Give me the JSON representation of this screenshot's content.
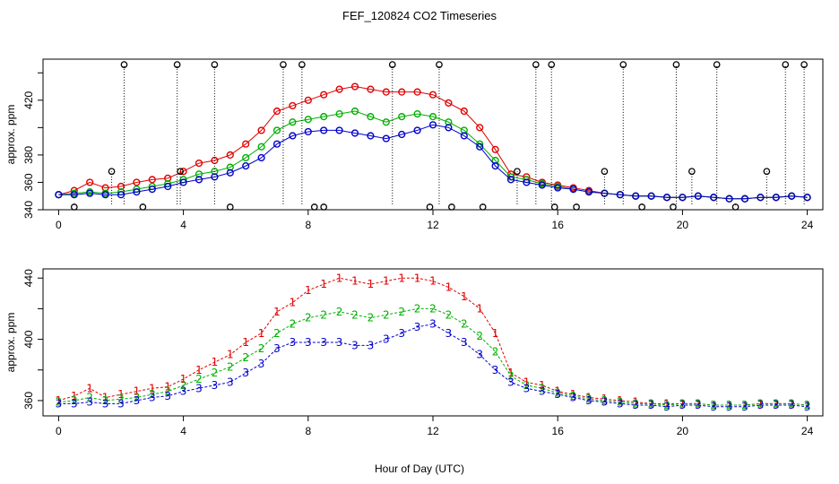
{
  "figure": {
    "title": "FEF_120824  CO2 Timeseries",
    "xlabel": "Hour of Day (UTC)"
  },
  "colors": {
    "series_1": "#e00000",
    "series_2": "#00b000",
    "series_3": "#0000cc",
    "raw": "#000000",
    "highlight": "#00d0d0"
  },
  "chart_data": [
    {
      "type": "scatter",
      "panel": "top",
      "title": "FEF_120824  CO2 Timeseries",
      "xlabel": "",
      "ylabel": "approx. ppm",
      "xlim": [
        -0.5,
        24.5
      ],
      "ylim": [
        340,
        450
      ],
      "xticks": [
        0,
        4,
        8,
        12,
        16,
        20,
        24
      ],
      "yticks": [
        340,
        360,
        380,
        400,
        420,
        440
      ],
      "ytick_labels": [
        "340",
        "360",
        "380",
        "",
        "420",
        ""
      ],
      "grid": false,
      "legend": "none",
      "marker": "open-circle",
      "series": [
        {
          "color": "red",
          "x": [
            0,
            0.5,
            1,
            1.5,
            2,
            2.5,
            3,
            3.5,
            4,
            4.5,
            5,
            5.5,
            6,
            6.5,
            7,
            7.5,
            8,
            8.5,
            9,
            9.5,
            10,
            10.5,
            11,
            11.5,
            12,
            12.5,
            13,
            13.5,
            14,
            14.5,
            15,
            15.5,
            16,
            16.5,
            17,
            17.5,
            18,
            18.5,
            19,
            19.5,
            20,
            20.5,
            21,
            21.5,
            22,
            22.5,
            23,
            23.5,
            24
          ],
          "y": [
            351,
            354,
            360,
            356,
            357,
            360,
            362,
            363,
            368,
            374,
            376,
            380,
            388,
            398,
            412,
            416,
            420,
            424,
            428,
            430,
            428,
            426,
            426,
            426,
            424,
            418,
            412,
            400,
            384,
            366,
            364,
            360,
            358,
            356,
            354,
            352,
            351,
            350,
            350,
            349,
            349,
            350,
            349,
            348,
            348,
            349,
            349,
            350,
            349
          ]
        },
        {
          "color": "green",
          "x": [
            0,
            0.5,
            1,
            1.5,
            2,
            2.5,
            3,
            3.5,
            4,
            4.5,
            5,
            5.5,
            6,
            6.5,
            7,
            7.5,
            8,
            8.5,
            9,
            9.5,
            10,
            10.5,
            11,
            11.5,
            12,
            12.5,
            13,
            13.5,
            14,
            14.5,
            15,
            15.5,
            16,
            16.5,
            17,
            17.5,
            18,
            18.5,
            19,
            19.5,
            20,
            20.5,
            21,
            21.5,
            22,
            22.5,
            23,
            23.5,
            24
          ],
          "y": [
            351,
            352,
            353,
            352,
            353,
            355,
            357,
            359,
            362,
            366,
            368,
            371,
            378,
            386,
            398,
            404,
            406,
            408,
            410,
            412,
            408,
            404,
            408,
            410,
            408,
            404,
            398,
            388,
            376,
            364,
            362,
            359,
            357,
            355,
            353,
            352,
            351,
            350,
            350,
            349,
            349,
            350,
            349,
            348,
            348,
            349,
            349,
            350,
            349
          ]
        },
        {
          "color": "blue",
          "x": [
            0,
            0.5,
            1,
            1.5,
            2,
            2.5,
            3,
            3.5,
            4,
            4.5,
            5,
            5.5,
            6,
            6.5,
            7,
            7.5,
            8,
            8.5,
            9,
            9.5,
            10,
            10.5,
            11,
            11.5,
            12,
            12.5,
            13,
            13.5,
            14,
            14.5,
            15,
            15.5,
            16,
            16.5,
            17,
            17.5,
            18,
            18.5,
            19,
            19.5,
            20,
            20.5,
            21,
            21.5,
            22,
            22.5,
            23,
            23.5,
            24
          ],
          "y": [
            351,
            351,
            352,
            351,
            351,
            353,
            355,
            357,
            360,
            362,
            364,
            367,
            372,
            378,
            388,
            394,
            397,
            398,
            398,
            396,
            394,
            392,
            395,
            398,
            402,
            400,
            394,
            386,
            372,
            362,
            360,
            358,
            356,
            355,
            353,
            352,
            351,
            350,
            350,
            349,
            349,
            350,
            349,
            348,
            348,
            349,
            349,
            350,
            349
          ]
        },
        {
          "color": "black",
          "style": "dotted-stems",
          "x": [
            0.5,
            1.7,
            2.1,
            2.7,
            3.8,
            3.9,
            5,
            5.5,
            7.2,
            7.8,
            8.2,
            8.5,
            10.7,
            11.9,
            12.2,
            12.6,
            13.6,
            14.7,
            15.3,
            15.8,
            15.9,
            16.6,
            17.5,
            18.1,
            18.7,
            19.7,
            19.8,
            20.3,
            21.1,
            21.7,
            22.7,
            23.3,
            23.9
          ],
          "y": [
            342,
            368,
            446,
            342,
            446,
            368,
            446,
            342,
            446,
            446,
            342,
            342,
            446,
            342,
            446,
            342,
            342,
            368,
            446,
            446,
            342,
            342,
            368,
            446,
            342,
            342,
            446,
            368,
            446,
            342,
            368,
            446,
            446
          ]
        }
      ]
    },
    {
      "type": "scatter",
      "panel": "bottom",
      "xlabel": "Hour of Day (UTC)",
      "ylabel": "approx. ppm",
      "xlim": [
        -0.5,
        24.5
      ],
      "ylim": [
        350,
        446
      ],
      "xticks": [
        0,
        4,
        8,
        12,
        16,
        20,
        24
      ],
      "yticks": [
        360,
        380,
        400,
        420,
        440
      ],
      "ytick_labels": [
        "360",
        "",
        "400",
        "",
        "440"
      ],
      "grid": false,
      "legend": "none",
      "marker": "number-glyph",
      "series": [
        {
          "color": "red",
          "glyph": "1",
          "x": [
            0,
            0.5,
            1,
            1.5,
            2,
            2.5,
            3,
            3.5,
            4,
            4.5,
            5,
            5.5,
            6,
            6.5,
            7,
            7.5,
            8,
            8.5,
            9,
            9.5,
            10,
            10.5,
            11,
            11.5,
            12,
            12.5,
            13,
            13.5,
            14,
            14.5,
            15,
            15.5,
            16,
            16.5,
            17,
            17.5,
            18,
            18.5,
            19,
            19.5,
            20,
            20.5,
            21,
            21.5,
            22,
            22.5,
            23,
            23.5,
            24
          ],
          "y": [
            360,
            363,
            368,
            362,
            364,
            366,
            368,
            369,
            374,
            380,
            385,
            390,
            398,
            404,
            418,
            424,
            432,
            436,
            440,
            438,
            436,
            438,
            440,
            440,
            438,
            434,
            428,
            420,
            404,
            378,
            372,
            370,
            366,
            364,
            362,
            361,
            360,
            359,
            358,
            358,
            358,
            358,
            357,
            357,
            357,
            358,
            358,
            358,
            357
          ]
        },
        {
          "color": "green",
          "glyph": "2",
          "x": [
            0,
            0.5,
            1,
            1.5,
            2,
            2.5,
            3,
            3.5,
            4,
            4.5,
            5,
            5.5,
            6,
            6.5,
            7,
            7.5,
            8,
            8.5,
            9,
            9.5,
            10,
            10.5,
            11,
            11.5,
            12,
            12.5,
            13,
            13.5,
            14,
            14.5,
            15,
            15.5,
            16,
            16.5,
            17,
            17.5,
            18,
            18.5,
            19,
            19.5,
            20,
            20.5,
            21,
            21.5,
            22,
            22.5,
            23,
            23.5,
            24
          ],
          "y": [
            359,
            360,
            362,
            360,
            361,
            362,
            364,
            366,
            370,
            374,
            378,
            382,
            388,
            394,
            404,
            410,
            414,
            416,
            418,
            416,
            414,
            416,
            418,
            420,
            420,
            416,
            410,
            402,
            392,
            376,
            370,
            368,
            365,
            363,
            361,
            360,
            359,
            358,
            358,
            357,
            358,
            358,
            357,
            357,
            357,
            358,
            358,
            358,
            357
          ]
        },
        {
          "color": "blue",
          "glyph": "3",
          "x": [
            0,
            0.5,
            1,
            1.5,
            2,
            2.5,
            3,
            3.5,
            4,
            4.5,
            5,
            5.5,
            6,
            6.5,
            7,
            7.5,
            8,
            8.5,
            9,
            9.5,
            10,
            10.5,
            11,
            11.5,
            12,
            12.5,
            13,
            13.5,
            14,
            14.5,
            15,
            15.5,
            16,
            16.5,
            17,
            17.5,
            18,
            18.5,
            19,
            19.5,
            20,
            20.5,
            21,
            21.5,
            22,
            22.5,
            23,
            23.5,
            24
          ],
          "y": [
            358,
            358,
            359,
            358,
            358,
            360,
            362,
            363,
            366,
            368,
            370,
            372,
            378,
            384,
            394,
            398,
            398,
            398,
            398,
            396,
            396,
            400,
            404,
            408,
            410,
            404,
            398,
            390,
            380,
            372,
            368,
            366,
            364,
            362,
            360,
            359,
            358,
            357,
            357,
            356,
            357,
            357,
            356,
            356,
            356,
            357,
            357,
            357,
            356
          ]
        }
      ]
    }
  ]
}
